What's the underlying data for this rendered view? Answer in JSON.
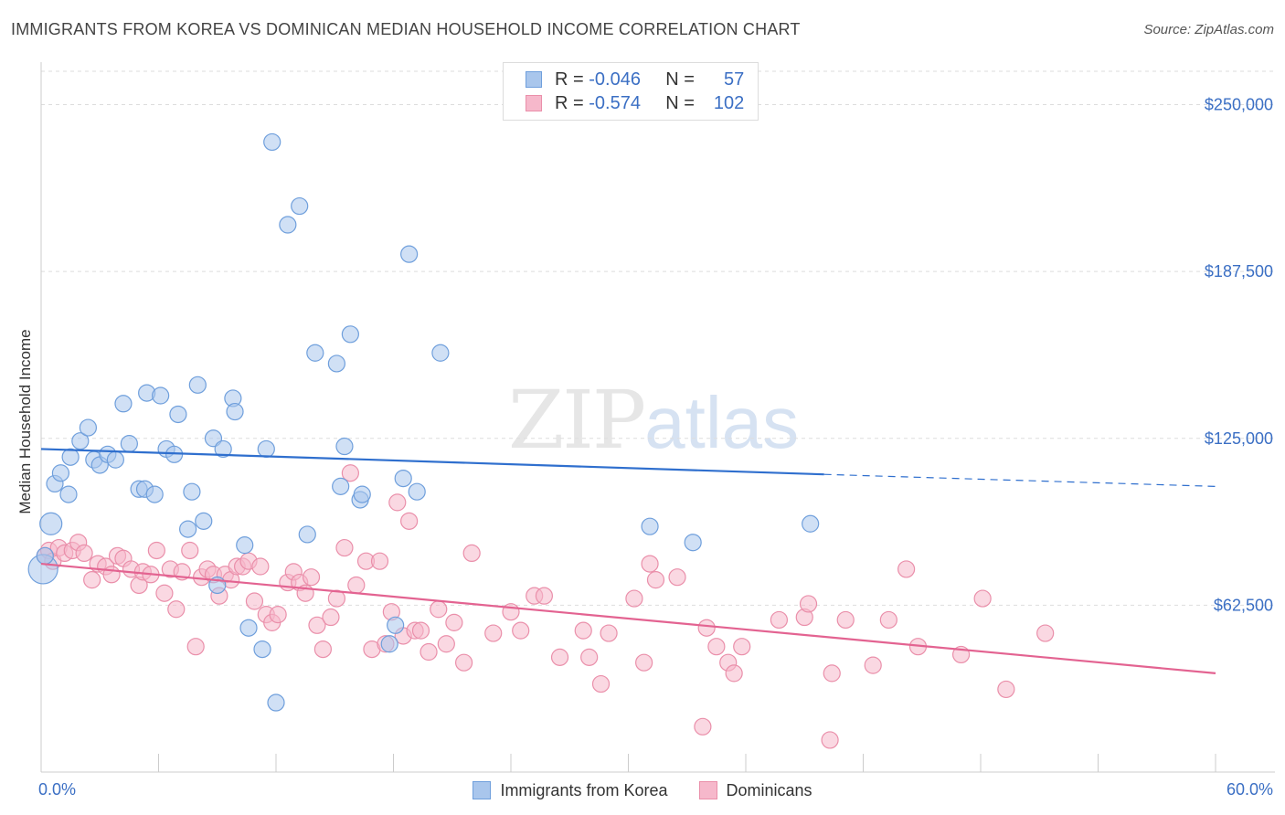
{
  "title": "IMMIGRANTS FROM KOREA VS DOMINICAN MEDIAN HOUSEHOLD INCOME CORRELATION CHART",
  "source": "Source: ZipAtlas.com",
  "watermark": {
    "zip": "ZIP",
    "atlas": "atlas"
  },
  "legend": {
    "rows": [
      {
        "r_label": "R =",
        "r_value": "-0.046",
        "n_label": "N =",
        "n_value": "57",
        "color": "#a9c6ec"
      },
      {
        "r_label": "R =",
        "r_value": "-0.574",
        "n_label": "N =",
        "n_value": "102",
        "color": "#f6b8cb"
      }
    ]
  },
  "colors": {
    "korea_fill": "#a9c6ec",
    "korea_stroke": "#6f9fdc",
    "korea_line": "#2f6fce",
    "dominican_fill": "#f6b8cb",
    "dominican_stroke": "#ea8faa",
    "dominican_line": "#e36391",
    "tick_label": "#3b6fc4",
    "grid": "#dddddd"
  },
  "chart_data": {
    "type": "scatter",
    "title": "IMMIGRANTS FROM KOREA VS DOMINICAN MEDIAN HOUSEHOLD INCOME CORRELATION CHART",
    "xlabel": "",
    "ylabel": "Median Household Income",
    "xlim": [
      0,
      60
    ],
    "ylim": [
      0,
      262500
    ],
    "x_tick_labels": [
      "0.0%",
      "60.0%"
    ],
    "y_ticks": [
      62500,
      125000,
      187500,
      250000
    ],
    "y_tick_labels": [
      "$62,500",
      "$125,000",
      "$187,500",
      "$250,000"
    ],
    "grid": true,
    "legend_position": "top-center",
    "series": [
      {
        "name": "Immigrants from Korea",
        "trend": {
          "x_start": 0,
          "y_start": 121000,
          "x_solid_end": 40,
          "y_solid_end": 111500,
          "x_end": 60,
          "y_end": 107000
        },
        "points": [
          [
            0.1,
            76000
          ],
          [
            0.5,
            93000
          ],
          [
            0.7,
            108000
          ],
          [
            1.0,
            112000
          ],
          [
            1.4,
            104000
          ],
          [
            1.5,
            118000
          ],
          [
            2.0,
            124000
          ],
          [
            2.4,
            129000
          ],
          [
            2.7,
            117000
          ],
          [
            3.0,
            115000
          ],
          [
            3.4,
            119000
          ],
          [
            3.8,
            117000
          ],
          [
            4.2,
            138000
          ],
          [
            4.5,
            123000
          ],
          [
            5.0,
            106000
          ],
          [
            5.3,
            106000
          ],
          [
            5.4,
            142000
          ],
          [
            5.8,
            104000
          ],
          [
            6.1,
            141000
          ],
          [
            6.4,
            121000
          ],
          [
            6.8,
            119000
          ],
          [
            7.0,
            134000
          ],
          [
            7.5,
            91000
          ],
          [
            7.7,
            105000
          ],
          [
            8.0,
            145000
          ],
          [
            8.3,
            94000
          ],
          [
            8.8,
            125000
          ],
          [
            9.0,
            70000
          ],
          [
            9.3,
            121000
          ],
          [
            9.8,
            140000
          ],
          [
            9.9,
            135000
          ],
          [
            10.4,
            85000
          ],
          [
            10.6,
            54000
          ],
          [
            11.3,
            46000
          ],
          [
            11.5,
            121000
          ],
          [
            11.8,
            236000
          ],
          [
            12.0,
            26000
          ],
          [
            12.6,
            205000
          ],
          [
            13.2,
            212000
          ],
          [
            13.6,
            89000
          ],
          [
            14.0,
            157000
          ],
          [
            15.1,
            153000
          ],
          [
            15.3,
            107000
          ],
          [
            15.5,
            122000
          ],
          [
            15.8,
            164000
          ],
          [
            16.3,
            102000
          ],
          [
            16.4,
            104000
          ],
          [
            17.8,
            48000
          ],
          [
            18.1,
            55000
          ],
          [
            18.5,
            110000
          ],
          [
            18.8,
            194000
          ],
          [
            19.2,
            105000
          ],
          [
            20.4,
            157000
          ],
          [
            31.1,
            92000
          ],
          [
            33.3,
            86000
          ],
          [
            39.3,
            93000
          ],
          [
            0.2,
            81000
          ]
        ]
      },
      {
        "name": "Dominicans",
        "trend": {
          "x_start": 0,
          "y_start": 78000,
          "x_end": 60,
          "y_end": 37000
        },
        "points": [
          [
            0.2,
            81000
          ],
          [
            0.4,
            83000
          ],
          [
            0.6,
            79000
          ],
          [
            0.9,
            84000
          ],
          [
            1.2,
            82000
          ],
          [
            1.6,
            83000
          ],
          [
            1.9,
            86000
          ],
          [
            2.2,
            82000
          ],
          [
            2.6,
            72000
          ],
          [
            2.9,
            78000
          ],
          [
            3.3,
            77000
          ],
          [
            3.6,
            74000
          ],
          [
            3.9,
            81000
          ],
          [
            4.2,
            80000
          ],
          [
            4.6,
            76000
          ],
          [
            5.0,
            70000
          ],
          [
            5.2,
            75000
          ],
          [
            5.6,
            74000
          ],
          [
            5.9,
            83000
          ],
          [
            6.3,
            67000
          ],
          [
            6.6,
            76000
          ],
          [
            6.9,
            61000
          ],
          [
            7.2,
            75000
          ],
          [
            7.6,
            83000
          ],
          [
            7.9,
            47000
          ],
          [
            8.2,
            73000
          ],
          [
            8.5,
            76000
          ],
          [
            8.8,
            74000
          ],
          [
            9.1,
            66000
          ],
          [
            9.4,
            74000
          ],
          [
            9.7,
            72000
          ],
          [
            10.0,
            77000
          ],
          [
            10.3,
            77000
          ],
          [
            10.6,
            79000
          ],
          [
            10.9,
            64000
          ],
          [
            11.2,
            77000
          ],
          [
            11.5,
            59000
          ],
          [
            11.8,
            56000
          ],
          [
            12.1,
            59000
          ],
          [
            12.6,
            71000
          ],
          [
            12.9,
            75000
          ],
          [
            13.2,
            71000
          ],
          [
            13.5,
            67000
          ],
          [
            13.8,
            73000
          ],
          [
            14.1,
            55000
          ],
          [
            14.4,
            46000
          ],
          [
            14.8,
            58000
          ],
          [
            15.1,
            65000
          ],
          [
            15.5,
            84000
          ],
          [
            15.8,
            112000
          ],
          [
            16.1,
            70000
          ],
          [
            16.6,
            79000
          ],
          [
            16.9,
            46000
          ],
          [
            17.3,
            79000
          ],
          [
            17.6,
            48000
          ],
          [
            17.9,
            60000
          ],
          [
            18.2,
            101000
          ],
          [
            18.5,
            51000
          ],
          [
            18.8,
            94000
          ],
          [
            19.1,
            53000
          ],
          [
            19.4,
            53000
          ],
          [
            19.8,
            45000
          ],
          [
            20.3,
            61000
          ],
          [
            20.7,
            48000
          ],
          [
            21.1,
            56000
          ],
          [
            21.6,
            41000
          ],
          [
            22.0,
            82000
          ],
          [
            23.1,
            52000
          ],
          [
            24.0,
            60000
          ],
          [
            24.5,
            53000
          ],
          [
            25.2,
            66000
          ],
          [
            25.7,
            66000
          ],
          [
            26.5,
            43000
          ],
          [
            27.7,
            53000
          ],
          [
            28.0,
            43000
          ],
          [
            28.6,
            33000
          ],
          [
            29.0,
            52000
          ],
          [
            30.3,
            65000
          ],
          [
            30.8,
            41000
          ],
          [
            31.1,
            78000
          ],
          [
            31.4,
            72000
          ],
          [
            32.5,
            73000
          ],
          [
            33.8,
            17000
          ],
          [
            34.0,
            54000
          ],
          [
            34.5,
            47000
          ],
          [
            35.1,
            41000
          ],
          [
            35.4,
            37000
          ],
          [
            35.8,
            47000
          ],
          [
            37.7,
            57000
          ],
          [
            39.0,
            58000
          ],
          [
            39.2,
            63000
          ],
          [
            40.3,
            12000
          ],
          [
            40.4,
            37000
          ],
          [
            41.1,
            57000
          ],
          [
            42.5,
            40000
          ],
          [
            43.3,
            57000
          ],
          [
            44.2,
            76000
          ],
          [
            44.8,
            47000
          ],
          [
            47.0,
            44000
          ],
          [
            48.1,
            65000
          ],
          [
            49.3,
            31000
          ],
          [
            51.3,
            52000
          ]
        ]
      }
    ]
  },
  "bottom_legend": [
    {
      "label": "Immigrants from Korea",
      "color": "#a9c6ec"
    },
    {
      "label": "Dominicans",
      "color": "#f6b8cb"
    }
  ]
}
